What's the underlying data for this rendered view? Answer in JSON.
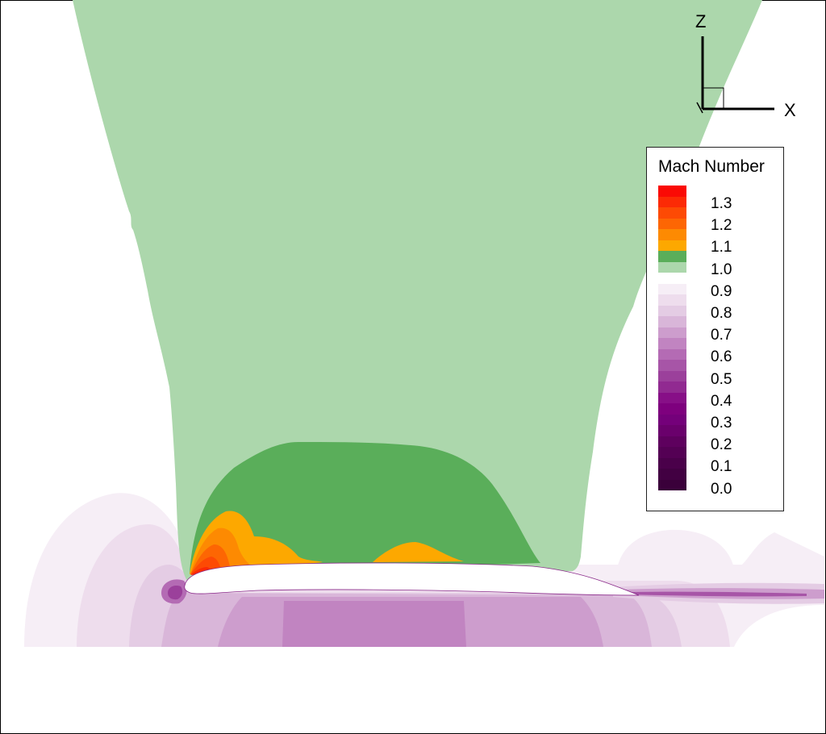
{
  "axes": {
    "x_label": "X",
    "z_label": "Z"
  },
  "legend": {
    "title": "Mach Number",
    "levels": [
      {
        "color": "#fa0a05"
      },
      {
        "color": "#fc2a05"
      },
      {
        "color": "#fd4a04"
      },
      {
        "color": "#fd6603"
      },
      {
        "color": "#fd8a02"
      },
      {
        "color": "#fda800"
      },
      {
        "color": "#5aae5a"
      },
      {
        "color": "#acd7ac"
      },
      {
        "color": "#ffffff"
      },
      {
        "color": "#f6eef6"
      },
      {
        "color": "#eedded"
      },
      {
        "color": "#e4cce4"
      },
      {
        "color": "#d9b6d9"
      },
      {
        "color": "#cd9dcd"
      },
      {
        "color": "#c184c1"
      },
      {
        "color": "#b46bb4"
      },
      {
        "color": "#a755a7"
      },
      {
        "color": "#9b409b"
      },
      {
        "color": "#912a91"
      },
      {
        "color": "#870f87"
      },
      {
        "color": "#7e007e"
      },
      {
        "color": "#74007a"
      },
      {
        "color": "#6a006c"
      },
      {
        "color": "#5e005e"
      },
      {
        "color": "#540054"
      },
      {
        "color": "#4a004a"
      },
      {
        "color": "#420042"
      },
      {
        "color": "#3a003a"
      }
    ],
    "ticks": [
      "1.3",
      "1.2",
      "1.1",
      "1.0",
      "0.9",
      "0.8",
      "0.7",
      "0.6",
      "0.5",
      "0.4",
      "0.3",
      "0.2",
      "0.1",
      "0.0"
    ]
  },
  "colors": {
    "freestream": "#ffffff",
    "near_sonic": "#acd7ac",
    "high_subsonic": "#5aae5a",
    "supersonic_low": "#fda800",
    "supersonic_high": "#fa0a05",
    "low_speed": "#c184c1",
    "wake": "#7e007e"
  }
}
